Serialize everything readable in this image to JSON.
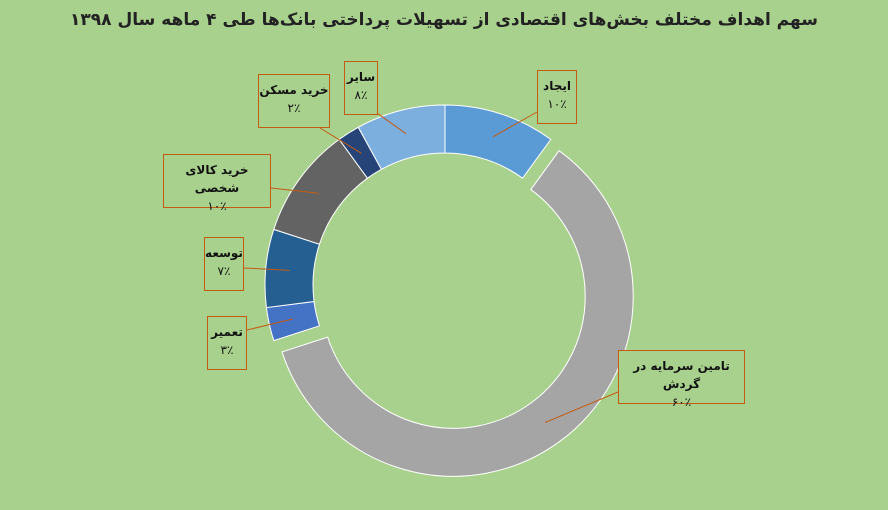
{
  "chart_data": {
    "type": "pie",
    "title": "سهم اهداف مختلف بخش‌های اقتصادی از تسهیلات پرداختی بانک‌ها طی ۴ ماهه سال ۱۳۹۸",
    "slices": [
      {
        "label": "ایجاد",
        "value": 10,
        "value_label": "۱۰٪",
        "color": "#5b9bd5"
      },
      {
        "label": "تامین سرمایه در گردش",
        "value": 60,
        "value_label": "۶۰٪",
        "color": "#a5a5a5"
      },
      {
        "label": "تعمیر",
        "value": 3,
        "value_label": "۳٪",
        "color": "#4472c4"
      },
      {
        "label": "توسعه",
        "value": 7,
        "value_label": "۷٪",
        "color": "#255e91"
      },
      {
        "label": "خرید کالای شخصی",
        "value": 10,
        "value_label": "۱۰٪",
        "color": "#636363"
      },
      {
        "label": "خرید مسکن",
        "value": 2,
        "value_label": "۲٪",
        "color": "#264478"
      },
      {
        "label": "سایر",
        "value": 8,
        "value_label": "۸٪",
        "color": "#7cafdd"
      }
    ],
    "exploded_slice": "تامین سرمایه در گردش"
  }
}
